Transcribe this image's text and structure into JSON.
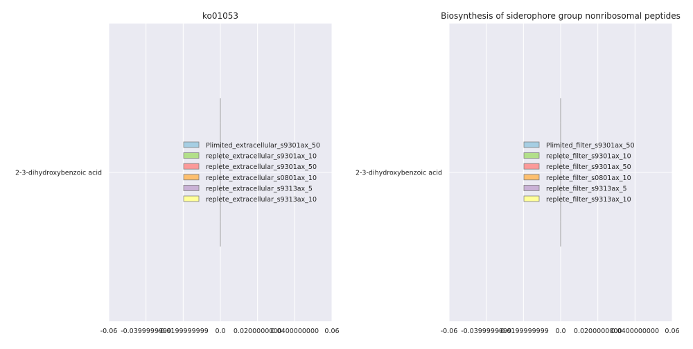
{
  "chart_data": [
    {
      "type": "bar",
      "orientation": "horizontal",
      "title": "ko01053",
      "xlabel": "",
      "ylabel": "",
      "categories": [
        "2-3-dihydroxybenzoic acid"
      ],
      "xlim": [
        -0.06,
        0.06
      ],
      "xtick_labels": [
        "-0.06",
        "-0.0399999999",
        "-0.0199999999",
        "0.0",
        "0.0200000000",
        "0.0400000000",
        "0.06"
      ],
      "xticks": [
        -0.06,
        -0.04,
        -0.02,
        0.0,
        0.02,
        0.04,
        0.06
      ],
      "grid": true,
      "legend_placement": "center-right",
      "series": [
        {
          "name": "Plimited_extracellular_s9301ax_50",
          "values": [
            0
          ],
          "color": "#a6cee3"
        },
        {
          "name": "replete_extracellular_s9301ax_10",
          "values": [
            0
          ],
          "color": "#b2df8a"
        },
        {
          "name": "replete_extracellular_s9301ax_50",
          "values": [
            0
          ],
          "color": "#fb9a99"
        },
        {
          "name": "replete_extracellular_s0801ax_10",
          "values": [
            0
          ],
          "color": "#fdbf6f"
        },
        {
          "name": "replete_extracellular_s9313ax_5",
          "values": [
            0
          ],
          "color": "#cab2d6"
        },
        {
          "name": "replete_extracellular_s9313ax_10",
          "values": [
            0
          ],
          "color": "#ffff99"
        }
      ]
    },
    {
      "type": "bar",
      "orientation": "horizontal",
      "title": "Biosynthesis of siderophore group nonribosomal peptides",
      "xlabel": "",
      "ylabel": "",
      "categories": [
        "2-3-dihydroxybenzoic acid"
      ],
      "xlim": [
        -0.06,
        0.06
      ],
      "xtick_labels": [
        "-0.06",
        "-0.0399999999",
        "-0.0199999999",
        "0.0",
        "0.0200000000",
        "0.0400000000",
        "0.06"
      ],
      "xticks": [
        -0.06,
        -0.04,
        -0.02,
        0.0,
        0.02,
        0.04,
        0.06
      ],
      "grid": true,
      "legend_placement": "center-right",
      "series": [
        {
          "name": "Plimited_filter_s9301ax_50",
          "values": [
            0
          ],
          "color": "#a6cee3"
        },
        {
          "name": "replete_filter_s9301ax_10",
          "values": [
            0
          ],
          "color": "#b2df8a"
        },
        {
          "name": "replete_filter_s9301ax_50",
          "values": [
            0
          ],
          "color": "#fb9a99"
        },
        {
          "name": "replete_filter_s0801ax_10",
          "values": [
            0
          ],
          "color": "#fdbf6f"
        },
        {
          "name": "replete_filter_s9313ax_5",
          "values": [
            0
          ],
          "color": "#cab2d6"
        },
        {
          "name": "replete_filter_s9313ax_10",
          "values": [
            0
          ],
          "color": "#ffff99"
        }
      ]
    }
  ],
  "style": {
    "plot_background": "#eaeaf2",
    "grid_color": "#ffffff",
    "zero_bar_color": "#b0b0b0",
    "legend_edge_color": "#7f7f7f",
    "text_color": "#222222"
  }
}
